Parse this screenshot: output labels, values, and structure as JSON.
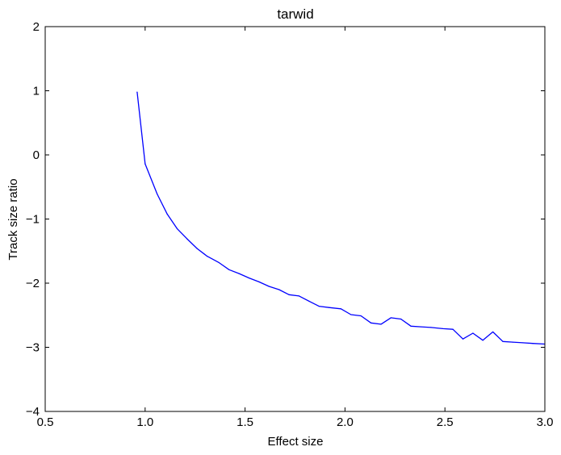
{
  "chart_data": {
    "type": "line",
    "title": "tarwid",
    "xlabel": "Effect size",
    "ylabel": "Track size ratio",
    "xlim": [
      0.5,
      3.0
    ],
    "ylim": [
      -4,
      2
    ],
    "xticks": [
      0.5,
      1.0,
      1.5,
      2.0,
      2.5,
      3.0
    ],
    "xtick_labels": [
      "0.5",
      "1.0",
      "1.5",
      "2.0",
      "2.5",
      "3.0"
    ],
    "yticks": [
      -4,
      -3,
      -2,
      -1,
      0,
      1,
      2
    ],
    "ytick_labels": [
      "−4",
      "−3",
      "−2",
      "−1",
      "0",
      "1",
      "2"
    ],
    "grid": false,
    "series": [
      {
        "color": "#0000ff",
        "x": [
          0.96,
          1.0,
          1.06,
          1.11,
          1.16,
          1.21,
          1.26,
          1.31,
          1.37,
          1.42,
          1.47,
          1.52,
          1.57,
          1.62,
          1.67,
          1.72,
          1.77,
          1.82,
          1.87,
          1.92,
          1.98,
          2.03,
          2.08,
          2.13,
          2.18,
          2.23,
          2.28,
          2.33,
          2.38,
          2.43,
          2.49,
          2.54,
          2.59,
          2.64,
          2.69,
          2.74,
          2.79,
          2.84,
          2.89,
          2.94,
          3.0
        ],
        "y": [
          0.98,
          -0.14,
          -0.61,
          -0.92,
          -1.15,
          -1.31,
          -1.46,
          -1.58,
          -1.68,
          -1.79,
          -1.85,
          -1.92,
          -1.98,
          -2.05,
          -2.1,
          -2.18,
          -2.2,
          -2.28,
          -2.36,
          -2.38,
          -2.4,
          -2.49,
          -2.51,
          -2.62,
          -2.64,
          -2.54,
          -2.56,
          -2.67,
          -2.68,
          -2.69,
          -2.71,
          -2.72,
          -2.87,
          -2.78,
          -2.89,
          -2.76,
          -2.91,
          -2.92,
          -2.93,
          -2.94,
          -2.95
        ]
      }
    ]
  }
}
